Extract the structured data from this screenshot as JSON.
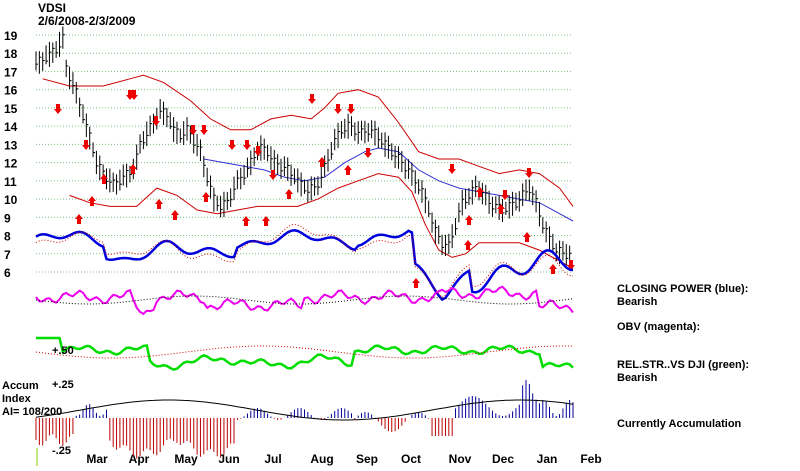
{
  "chart_data": {
    "type": "line",
    "title": "VDSI",
    "subtitle": "2/6/2008-2/3/2009",
    "y_ticks": [
      19,
      18,
      17,
      16,
      15,
      14,
      13,
      12,
      11,
      10,
      9,
      8,
      7,
      6
    ],
    "ylim": [
      5.5,
      19.5
    ],
    "x_ticks": [
      "Mar",
      "Apr",
      "May",
      "Jun",
      "Jul",
      "Aug",
      "Sep",
      "Oct",
      "Nov",
      "Dec",
      "Jan",
      "Feb"
    ],
    "grid": true,
    "series": [
      {
        "name": "Price",
        "color": "#000000",
        "values": [
          [
            0,
            17.4
          ],
          [
            3,
            17.8
          ],
          [
            6,
            18.2
          ],
          [
            8,
            18.8
          ],
          [
            9,
            17.2
          ],
          [
            12,
            15.8
          ],
          [
            14,
            14.6
          ],
          [
            16,
            13.4
          ],
          [
            18,
            12.0
          ],
          [
            20,
            11.4
          ],
          [
            23,
            10.8
          ],
          [
            26,
            11.2
          ],
          [
            29,
            11.6
          ],
          [
            31,
            13.0
          ],
          [
            33,
            13.6
          ],
          [
            35,
            14.2
          ],
          [
            37,
            14.8
          ],
          [
            39,
            14.6
          ],
          [
            41,
            13.8
          ],
          [
            43,
            13.5
          ],
          [
            45,
            13.8
          ],
          [
            47,
            13.2
          ],
          [
            49,
            12.6
          ],
          [
            51,
            11.2
          ],
          [
            53,
            10.0
          ],
          [
            55,
            9.6
          ],
          [
            57,
            9.8
          ],
          [
            59,
            10.6
          ],
          [
            61,
            11.2
          ],
          [
            63,
            11.6
          ],
          [
            65,
            12.4
          ],
          [
            67,
            12.8
          ],
          [
            69,
            12.6
          ],
          [
            71,
            12.0
          ],
          [
            73,
            11.8
          ],
          [
            75,
            11.6
          ],
          [
            77,
            11.2
          ],
          [
            79,
            10.8
          ],
          [
            81,
            10.5
          ],
          [
            83,
            10.6
          ],
          [
            85,
            11.2
          ],
          [
            87,
            12.2
          ],
          [
            89,
            13.2
          ],
          [
            91,
            13.8
          ],
          [
            93,
            14.0
          ],
          [
            95,
            13.8
          ],
          [
            97,
            13.6
          ],
          [
            99,
            13.8
          ],
          [
            101,
            13.6
          ],
          [
            103,
            13.2
          ],
          [
            105,
            12.8
          ],
          [
            107,
            12.4
          ],
          [
            109,
            12.0
          ],
          [
            111,
            11.6
          ],
          [
            113,
            11.0
          ],
          [
            115,
            10.4
          ],
          [
            117,
            9.4
          ],
          [
            119,
            8.2
          ],
          [
            121,
            7.6
          ],
          [
            123,
            7.4
          ],
          [
            125,
            8.6
          ],
          [
            127,
            9.8
          ],
          [
            129,
            10.2
          ],
          [
            131,
            10.6
          ],
          [
            133,
            10.4
          ],
          [
            135,
            9.8
          ],
          [
            137,
            9.6
          ],
          [
            139,
            9.4
          ],
          [
            141,
            9.6
          ],
          [
            143,
            9.8
          ],
          [
            145,
            10.2
          ],
          [
            147,
            10.6
          ],
          [
            149,
            9.8
          ],
          [
            151,
            8.6
          ],
          [
            153,
            7.8
          ],
          [
            155,
            7.2
          ],
          [
            157,
            7.0
          ],
          [
            159,
            7.0
          ]
        ]
      },
      {
        "name": "Upper band",
        "color": "#cc0000",
        "values": [
          [
            2,
            16.6
          ],
          [
            10,
            16.2
          ],
          [
            20,
            16.2
          ],
          [
            28,
            16.6
          ],
          [
            32,
            16.8
          ],
          [
            38,
            16.4
          ],
          [
            46,
            15.4
          ],
          [
            52,
            14.4
          ],
          [
            58,
            13.8
          ],
          [
            64,
            13.8
          ],
          [
            70,
            14.4
          ],
          [
            76,
            14.6
          ],
          [
            82,
            14.4
          ],
          [
            86,
            15.0
          ],
          [
            90,
            15.8
          ],
          [
            96,
            16.0
          ],
          [
            102,
            15.6
          ],
          [
            108,
            14.2
          ],
          [
            114,
            12.6
          ],
          [
            120,
            12.2
          ],
          [
            126,
            12.2
          ],
          [
            132,
            11.8
          ],
          [
            138,
            11.4
          ],
          [
            144,
            11.6
          ],
          [
            150,
            11.4
          ],
          [
            156,
            10.6
          ],
          [
            160,
            9.6
          ]
        ]
      },
      {
        "name": "Lower band",
        "color": "#cc0000",
        "values": [
          [
            10,
            10.2
          ],
          [
            16,
            9.8
          ],
          [
            22,
            9.6
          ],
          [
            30,
            9.6
          ],
          [
            36,
            10.6
          ],
          [
            42,
            10.2
          ],
          [
            48,
            9.4
          ],
          [
            54,
            9.2
          ],
          [
            60,
            9.4
          ],
          [
            66,
            9.6
          ],
          [
            72,
            9.6
          ],
          [
            78,
            9.6
          ],
          [
            84,
            10.0
          ],
          [
            90,
            10.6
          ],
          [
            96,
            11.0
          ],
          [
            102,
            11.4
          ],
          [
            108,
            11.2
          ],
          [
            112,
            10.4
          ],
          [
            116,
            8.6
          ],
          [
            120,
            7.2
          ],
          [
            124,
            6.8
          ],
          [
            128,
            7.0
          ],
          [
            132,
            7.6
          ],
          [
            138,
            7.6
          ],
          [
            144,
            7.6
          ],
          [
            150,
            7.2
          ],
          [
            156,
            6.6
          ],
          [
            160,
            6.2
          ]
        ]
      },
      {
        "name": "Moving average",
        "color": "#3030d0",
        "values": [
          [
            50,
            12.2
          ],
          [
            56,
            12.0
          ],
          [
            62,
            11.8
          ],
          [
            68,
            11.6
          ],
          [
            74,
            11.2
          ],
          [
            80,
            11.0
          ],
          [
            86,
            11.2
          ],
          [
            92,
            12.0
          ],
          [
            98,
            12.6
          ],
          [
            102,
            12.8
          ],
          [
            108,
            12.6
          ],
          [
            114,
            11.6
          ],
          [
            120,
            11.0
          ],
          [
            126,
            10.6
          ],
          [
            132,
            10.4
          ],
          [
            138,
            10.2
          ],
          [
            144,
            10.0
          ],
          [
            150,
            9.8
          ],
          [
            156,
            9.2
          ],
          [
            160,
            8.8
          ]
        ]
      }
    ],
    "arrows_down": [
      [
        24,
        14.2
      ],
      [
        32,
        15.4
      ],
      [
        33,
        15.4
      ],
      [
        57,
        13.8
      ],
      [
        64,
        13.4
      ],
      [
        68,
        13.3
      ],
      [
        80,
        13.0
      ],
      [
        97,
        13.6
      ],
      [
        111,
        15.2
      ],
      [
        115,
        15.2
      ],
      [
        121,
        14.6
      ],
      [
        126,
        13.8
      ],
      [
        154,
        11.6
      ],
      [
        183,
        11.6
      ],
      [
        196,
        11.6
      ],
      [
        212,
        11.6
      ],
      [
        230,
        11.6
      ],
      [
        255,
        11.6
      ]
    ],
    "arrows_up": [
      [
        0,
        0
      ]
    ],
    "indicators": {
      "closing_power": {
        "label": "CLOSING POWER (blue):",
        "state": "Bearish"
      },
      "obv": {
        "label": "OBV (magenta):"
      },
      "rel_str": {
        "label": "REL.STR..VS DJI (green):",
        "state": "Bearish",
        "tick": "+.50"
      },
      "accum": {
        "label_lines": [
          "Accum",
          "Index",
          "AI= 108/200"
        ],
        "status": "Currently Accumulation",
        "tick_top": "+.25",
        "tick_bottom": "-.25"
      }
    },
    "colors": {
      "price": "#000000",
      "band": "#cc0000",
      "ma": "#3030d0",
      "closing_power": "#0000dd",
      "obv": "#ee00ee",
      "rel_str": "#00dd00",
      "arrow": "#ee0000",
      "accum_pos": "#000099",
      "accum_neg": "#bb0000",
      "grid": "#7fbf7f"
    }
  }
}
